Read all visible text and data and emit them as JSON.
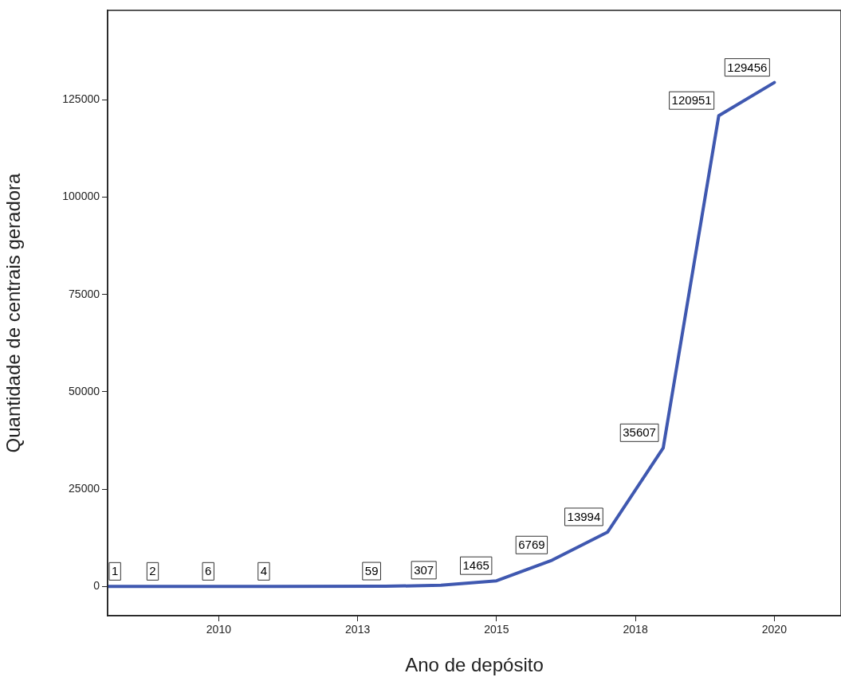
{
  "chart_data": {
    "type": "line",
    "xlabel": "Ano de depósito",
    "ylabel": "Quantidade de centrais geradora",
    "x": [
      2008,
      2009,
      2010,
      2011,
      2013,
      2014,
      2015,
      2016,
      2017,
      2018,
      2019,
      2020
    ],
    "series": [
      {
        "color": "#3f58b0",
        "values": [
          1,
          2,
          6,
          4,
          59,
          307,
          1465,
          6769,
          13994,
          35607,
          120951,
          129456
        ]
      }
    ],
    "xlim": [
      2008,
      2021.2
    ],
    "xticks": [
      2010,
      {
        "value": 2012.5,
        "label": "2013"
      },
      2015,
      {
        "value": 2017.5,
        "label": "2018"
      },
      2020
    ],
    "ylim": [
      -7500,
      148000
    ],
    "yticks": [
      0,
      25000,
      50000,
      75000,
      100000,
      125000
    ],
    "grid": false,
    "legend": false,
    "marker": "none",
    "line_style": "solid",
    "data_labels": true
  }
}
